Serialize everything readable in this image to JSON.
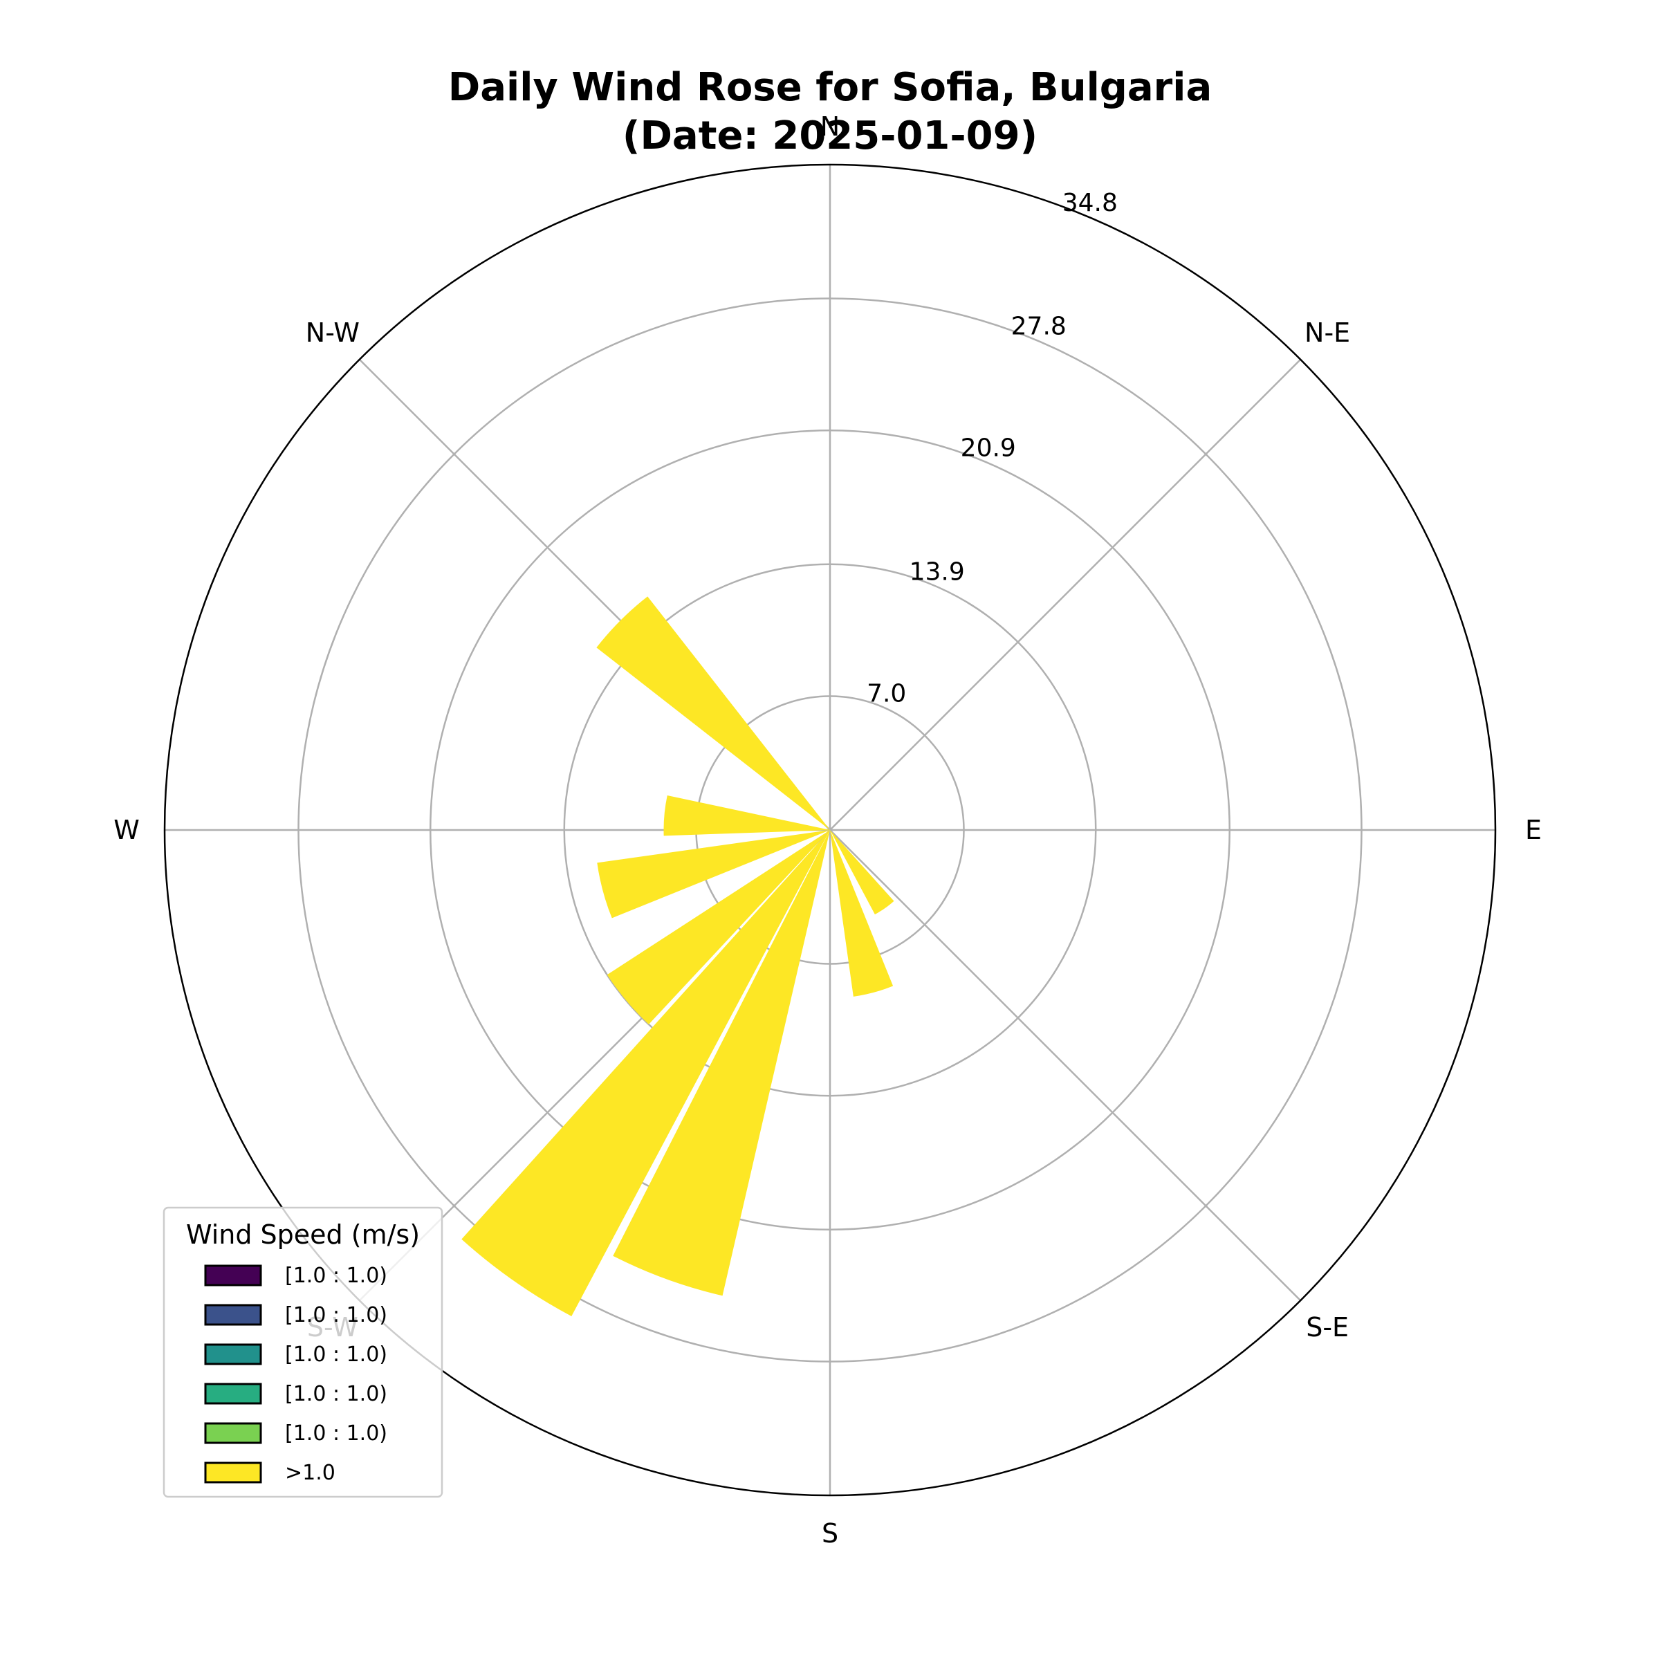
{
  "chart_data": {
    "type": "wind-rose",
    "title": "Daily Wind Rose for Sofia, Bulgaria\n(Date: 2025-01-09)",
    "title_lines": [
      "Daily Wind Rose for Sofia, Bulgaria",
      "(Date: 2025-01-09)"
    ],
    "direction_labels": [
      "E",
      "N-E",
      "N",
      "N-W",
      "W",
      "S-W",
      "S",
      "S-E"
    ],
    "radial_ticks": [
      7.0,
      13.9,
      20.9,
      27.8,
      34.8
    ],
    "radial_tick_labels": [
      "7.0",
      "13.9",
      "20.9",
      "27.8",
      "34.8"
    ],
    "rmax": 34.8,
    "grid": true,
    "series": [
      {
        "bin_label": ">1.0",
        "color": "#fde725",
        "sectors": [
          {
            "direction_deg": 135,
            "value": 15.5
          },
          {
            "direction_deg": 175,
            "value": 8.7
          },
          {
            "direction_deg": 195,
            "value": 12.3
          },
          {
            "direction_deg": 220,
            "value": 13.9
          },
          {
            "direction_deg": 235,
            "value": 28.8
          },
          {
            "direction_deg": 250,
            "value": 25.0
          },
          {
            "direction_deg": 285,
            "value": 8.8
          },
          {
            "direction_deg": 305,
            "value": 5.0
          }
        ],
        "sector_width_deg": 14
      }
    ],
    "legend": {
      "title": "Wind Speed (m/s)",
      "position": "lower-left",
      "entries": [
        {
          "label": "[1.0 : 1.0)",
          "color": "#440154"
        },
        {
          "label": "[1.0 : 1.0)",
          "color": "#3b528b"
        },
        {
          "label": "[1.0 : 1.0)",
          "color": "#21918c"
        },
        {
          "label": "[1.0 : 1.0)",
          "color": "#27ad81"
        },
        {
          "label": "[1.0 : 1.0)",
          "color": "#7ad151"
        },
        {
          "label": ">1.0",
          "color": "#fde725"
        }
      ]
    }
  }
}
